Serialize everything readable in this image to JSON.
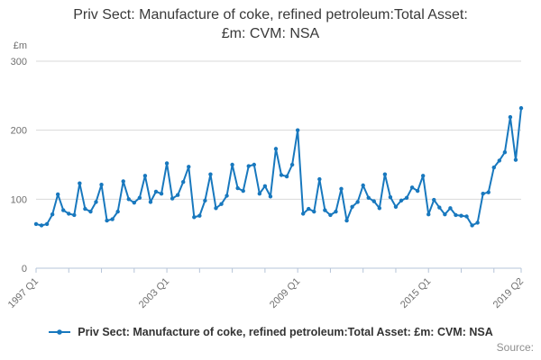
{
  "title": "Priv Sect: Manufacture of coke, refined petroleum:Total Asset: £m: CVM: NSA",
  "source_label": "Source:",
  "legend": {
    "label": "Priv Sect: Manufacture of coke, refined petroleum:Total Asset: £m: CVM: NSA",
    "marker": "line-with-dot"
  },
  "y_axis": {
    "unit_label": "£m",
    "ticks": [
      300,
      200,
      100,
      0
    ]
  },
  "x_axis": {
    "tick_labels": [
      "1997 Q1",
      "2003 Q1",
      "2009 Q1",
      "2015 Q1",
      "2019 Q2"
    ],
    "minor_tick_every_quarters": 6
  },
  "colors": {
    "line": "#1878be",
    "grid": "#d9d9d9",
    "axis": "#b6c4d8",
    "tick_text": "#6f6f6f",
    "title_text": "#393939",
    "legend_text": "#333333",
    "source_text": "#8f8f8f"
  },
  "chart_data": {
    "type": "line",
    "title": "Priv Sect: Manufacture of coke, refined petroleum:Total Asset: £m: CVM: NSA",
    "xlabel": "",
    "ylabel": "£m",
    "ylim": [
      0,
      300
    ],
    "grid": "horizontal",
    "legend_position": "bottom",
    "frequency": "quarterly",
    "x_start": "1997 Q1",
    "x_end": "2019 Q2",
    "tick_positions_quarters": [
      0,
      24,
      48,
      72,
      89
    ],
    "values": [
      64,
      62,
      64,
      78,
      107,
      84,
      79,
      77,
      123,
      86,
      82,
      96,
      121,
      69,
      71,
      82,
      126,
      100,
      95,
      102,
      134,
      96,
      111,
      108,
      152,
      101,
      106,
      125,
      147,
      74,
      76,
      98,
      136,
      87,
      93,
      105,
      150,
      116,
      112,
      148,
      150,
      108,
      119,
      104,
      173,
      135,
      133,
      150,
      200,
      79,
      86,
      82,
      129,
      84,
      77,
      82,
      115,
      69,
      89,
      96,
      120,
      102,
      97,
      87,
      136,
      103,
      89,
      98,
      102,
      117,
      112,
      134,
      78,
      99,
      88,
      78,
      87,
      77,
      76,
      75,
      62,
      66,
      108,
      110,
      146,
      156,
      168,
      219,
      157,
      232
    ]
  }
}
